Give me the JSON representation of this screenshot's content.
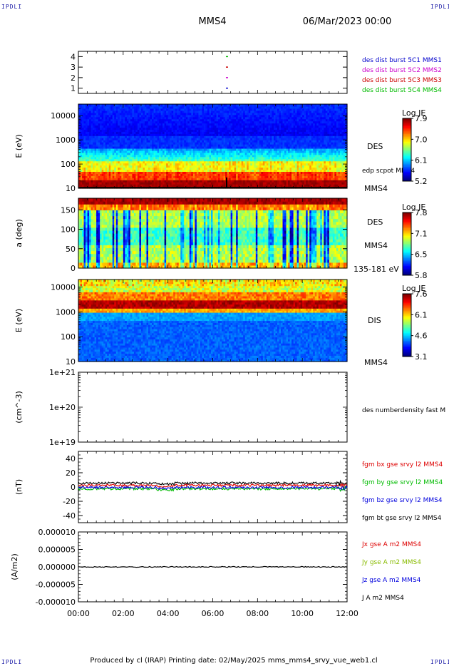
{
  "corner_label": "IPDLI",
  "header": {
    "probe": "MMS4",
    "datetime": "06/Mar/2023 00:00"
  },
  "footer": "Produced by cl (IRAP)   Printing date: 02/May/2025   mms_mms4_srvy_vue_web1.cl",
  "chart_data": [
    {
      "type": "scatter",
      "panel": "burst-availability",
      "yticks": [
        "1",
        "2",
        "3",
        "4"
      ],
      "ylim": [
        0.5,
        4.5
      ],
      "x": [
        6.62
      ],
      "series": [
        {
          "name": "des dist burst 5C1 MMS1",
          "color": "#0000cc",
          "y": 1
        },
        {
          "name": "des dist burst 5C2 MMS2",
          "color": "#cc00cc",
          "y": 2
        },
        {
          "name": "des dist burst 5C3 MMS3",
          "color": "#cc0000",
          "y": 3
        },
        {
          "name": "des dist burst 5C4 MMS4",
          "color": "#00bb00",
          "y": 4
        }
      ]
    },
    {
      "type": "heatmap",
      "panel": "des-energy",
      "ylabel": "E (eV)",
      "yscale": "log",
      "ylim": [
        10,
        30000
      ],
      "yticks": [
        "10",
        "100",
        "1000",
        "10000"
      ],
      "label": "DES",
      "probe": "MMS4",
      "overlay": "edp scpot MMS4",
      "colorbar": {
        "title": "Log JE",
        "ticks": [
          "7.9",
          "7.0",
          "6.1",
          "5.2"
        ],
        "range": [
          5.2,
          7.9
        ]
      }
    },
    {
      "type": "heatmap",
      "panel": "des-pitch-angle",
      "ylabel": "a (deg)",
      "ylim": [
        0,
        180
      ],
      "yticks": [
        "0",
        "50",
        "100",
        "150"
      ],
      "label": "DES",
      "probe": "MMS4",
      "energy_range": "135-181 eV",
      "colorbar": {
        "title": "Log JE",
        "ticks": [
          "7.8",
          "7.1",
          "6.5",
          "5.8"
        ],
        "range": [
          5.8,
          7.8
        ]
      }
    },
    {
      "type": "heatmap",
      "panel": "dis-energy",
      "ylabel": "E (eV)",
      "yscale": "log",
      "ylim": [
        10,
        20000
      ],
      "yticks": [
        "10",
        "100",
        "1000",
        "10000"
      ],
      "label": "DIS",
      "probe": "MMS4",
      "colorbar": {
        "title": "Log JE",
        "ticks": [
          "7.6",
          "6.1",
          "4.6",
          "3.1"
        ],
        "range": [
          3.1,
          7.6
        ]
      }
    },
    {
      "type": "line",
      "panel": "density",
      "ylabel": "(cm^-3)",
      "yscale": "log",
      "ylim": [
        1e+19,
        1e+21
      ],
      "yticks": [
        "1e+19",
        "1e+20",
        "1e+21"
      ],
      "series": [
        {
          "name": "des numberdensity fast M",
          "color": "#000000"
        }
      ]
    },
    {
      "type": "line",
      "panel": "magnetic-field",
      "ylabel": "(nT)",
      "ylim": [
        -50,
        50
      ],
      "yticks": [
        "-40",
        "-20",
        "0",
        "20",
        "40"
      ],
      "series": [
        {
          "name": "fgm bx gse srvy l2 MMS4",
          "color": "#dd0000",
          "mean": 2.5
        },
        {
          "name": "fgm by gse srvy l2 MMS4",
          "color": "#00bb00",
          "mean": -2.5
        },
        {
          "name": "fgm bz gse srvy l2 MMS4",
          "color": "#0000dd",
          "mean": -0.5
        },
        {
          "name": "fgm bt gse srvy l2 MMS4",
          "color": "#000000",
          "mean": 5.5
        }
      ]
    },
    {
      "type": "line",
      "panel": "current-density",
      "ylabel": "(A/m2)",
      "ylim": [
        -1e-05,
        1e-05
      ],
      "yticks": [
        "-0.000010",
        "-0.000005",
        "0.000000",
        "0.000005",
        "0.000010"
      ],
      "series": [
        {
          "name": "Jx gse A m2 MMS4",
          "color": "#dd0000"
        },
        {
          "name": "Jy gse A m2 MMS4",
          "color": "#88bb00"
        },
        {
          "name": "Jz gse A m2 MMS4",
          "color": "#0000dd"
        },
        {
          "name": "J A m2 MMS4",
          "color": "#000000"
        }
      ]
    }
  ],
  "x_axis": {
    "xlim": [
      0,
      12
    ],
    "ticks": [
      "00:00",
      "02:00",
      "04:00",
      "06:00",
      "08:00",
      "10:00",
      "12:00"
    ]
  }
}
